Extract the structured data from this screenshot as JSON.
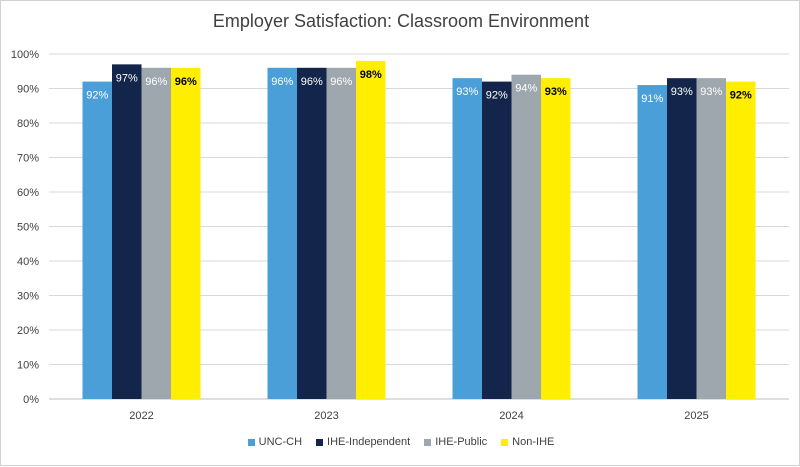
{
  "chart_data": {
    "type": "bar",
    "title": "Employer Satisfaction: Classroom Environment",
    "xlabel": "",
    "ylabel": "",
    "categories": [
      "2022",
      "2023",
      "2024",
      "2025"
    ],
    "ylim": [
      0,
      100
    ],
    "yticks": [
      "0%",
      "10%",
      "20%",
      "30%",
      "40%",
      "50%",
      "60%",
      "70%",
      "80%",
      "90%",
      "100%"
    ],
    "grid": true,
    "legend_position": "bottom",
    "series": [
      {
        "name": "UNC-CH",
        "color": "#4a9fd8",
        "label_color": "#ffffff",
        "values": [
          92,
          96,
          93,
          91
        ],
        "labels": [
          "92%",
          "96%",
          "93%",
          "91%"
        ]
      },
      {
        "name": "IHE-Independent",
        "color": "#13254a",
        "label_color": "#ffffff",
        "values": [
          97,
          96,
          92,
          93
        ],
        "labels": [
          "97%",
          "96%",
          "92%",
          "93%"
        ]
      },
      {
        "name": "IHE-Public",
        "color": "#9ea7ae",
        "label_color": "#ffffff",
        "values": [
          96,
          96,
          94,
          93
        ],
        "labels": [
          "96%",
          "96%",
          "94%",
          "93%"
        ]
      },
      {
        "name": "Non-IHE",
        "color": "#ffee00",
        "label_color": "#000000",
        "values": [
          96,
          98,
          93,
          92
        ],
        "labels": [
          "96%",
          "98%",
          "93%",
          "92%"
        ]
      }
    ]
  }
}
